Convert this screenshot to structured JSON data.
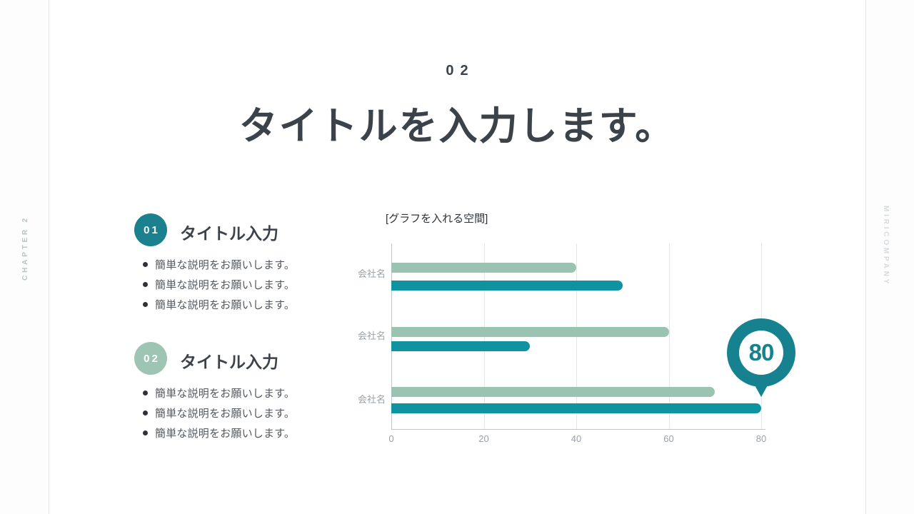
{
  "page": {
    "kicker": "02",
    "title": "タイトルを入力します。",
    "side_left": "CHAPTER 2",
    "side_right": "MIRICOMPANY"
  },
  "sections": [
    {
      "number": "01",
      "heading": "タイトル入力",
      "accent": "#1B818E",
      "bullets": [
        "簡単な説明をお願いします。",
        "簡単な説明をお願いします。",
        "簡単な説明をお願いします。"
      ]
    },
    {
      "number": "02",
      "heading": "タイトル入力",
      "accent": "#9EC5B3",
      "bullets": [
        "簡単な説明をお願いします。",
        "簡単な説明をお願いします。",
        "簡単な説明をお願いします。"
      ]
    }
  ],
  "chart_data": {
    "type": "bar",
    "orientation": "horizontal",
    "title": "[グラフを入れる空間]",
    "categories": [
      "会社名",
      "会社名",
      "会社名"
    ],
    "series": [
      {
        "color": "#9AC3B1",
        "values": [
          40,
          60,
          70
        ]
      },
      {
        "color": "#0F93A0",
        "values": [
          50,
          30,
          80
        ]
      }
    ],
    "xlim": [
      0,
      80
    ],
    "xticks": [
      0,
      20,
      40,
      60,
      80
    ],
    "grid": true,
    "legend": false,
    "callout": {
      "value": "80",
      "color": "#17828F",
      "series_index": 1,
      "category_index": 2
    }
  },
  "colors": {
    "text_dark": "#3C424A",
    "text_gray": "#53585E",
    "axis_gray": "#9BA1A5",
    "teal": "#0F93A0",
    "sage": "#9AC3B1"
  }
}
